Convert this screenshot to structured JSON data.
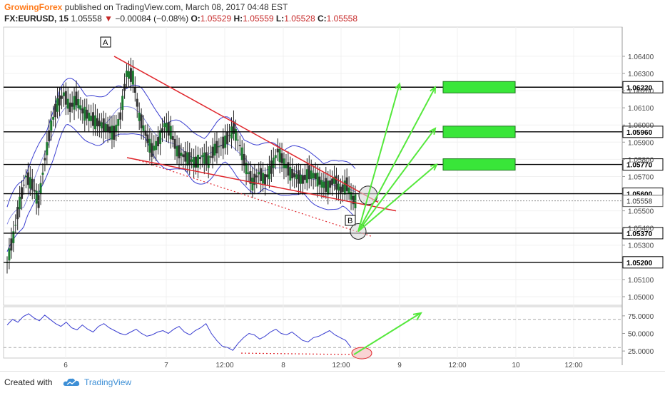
{
  "header": {
    "publisher": "GrowingForex",
    "published_text": "published on TradingView.com, March 08, 2017 04:48 EST",
    "symbol": "FX:EURUSD, 15",
    "last": "1.05558",
    "change_arrow": "▼",
    "change": "−0.00084 (−0.08%)",
    "o_label": "O:",
    "o_value": "1.05529",
    "h_label": "H:",
    "h_value": "1.05559",
    "l_label": "L:",
    "l_value": "1.05528",
    "c_label": "C:",
    "c_value": "1.05558"
  },
  "footer": {
    "created_with": "Created with",
    "brand": "TradingView",
    "logo_icon": "tradingview-cloud-icon"
  },
  "colors": {
    "candle_up": "#1b7a2e",
    "candle_down": "#333333",
    "bollinger": "#3b3fd1",
    "trendline": "#e0262c",
    "target_arrow": "#55e83c",
    "target_box": "#39e639",
    "level_line": "#000000",
    "rsi_line": "#3b3fd1",
    "price_tag_bg": "#222222"
  },
  "chart_data": [
    {
      "type": "candlestick",
      "instrument": "FX:EURUSD",
      "timeframe": "15",
      "x_tick_labels": [
        "6",
        "7",
        "12:00",
        "8",
        "12:00",
        "9",
        "12:00",
        "10",
        "12:00"
      ],
      "y_tick_labels": [
        "1.06400",
        "1.06300",
        "1.06200",
        "1.06100",
        "1.06000",
        "1.05900",
        "1.05800",
        "1.05700",
        "1.05500",
        "1.05400",
        "1.05300",
        "1.05100",
        "1.05000"
      ],
      "ylim": [
        1.0495,
        1.0657
      ],
      "price_close_path": [
        1.052,
        1.0535,
        1.0555,
        1.057,
        1.0565,
        1.0555,
        1.058,
        1.06,
        1.0612,
        1.0618,
        1.061,
        1.0615,
        1.0608,
        1.0605,
        1.0602,
        1.06,
        1.0598,
        1.0595,
        1.0605,
        1.063,
        1.0628,
        1.0605,
        1.0595,
        1.0585,
        1.059,
        1.06,
        1.0596,
        1.0585,
        1.0582,
        1.058,
        1.0578,
        1.0582,
        1.0579,
        1.0586,
        1.0588,
        1.0592,
        1.0598,
        1.0588,
        1.0575,
        1.0566,
        1.0572,
        1.0568,
        1.0575,
        1.0585,
        1.0578,
        1.0572,
        1.057,
        1.0568,
        1.0572,
        1.057,
        1.0566,
        1.0564,
        1.0568,
        1.0562,
        1.0565,
        1.0556
      ],
      "levels": [
        {
          "label": "1.06220",
          "value": 1.0622
        },
        {
          "label": "1.05960",
          "value": 1.0596
        },
        {
          "label": "1.05770",
          "value": 1.0577
        },
        {
          "label": "1.05600",
          "value": 1.056
        },
        {
          "label": "1.05370",
          "value": 1.0537
        },
        {
          "label": "1.05200",
          "value": 1.052
        }
      ],
      "current_price": {
        "label": "1.05558",
        "value": 1.05558
      },
      "annotations": [
        {
          "label": "A"
        },
        {
          "label": "B"
        }
      ],
      "target_boxes": [
        {
          "level": 1.0622
        },
        {
          "level": 1.0596
        },
        {
          "level": 1.0577
        }
      ],
      "grid": true
    },
    {
      "type": "line",
      "indicator": "RSI",
      "y_tick_labels": [
        "75.0000",
        "50.0000",
        "25.0000"
      ],
      "ylim": [
        15,
        88
      ],
      "reference_lines": [
        70,
        30
      ],
      "values": [
        62,
        70,
        66,
        74,
        78,
        72,
        68,
        76,
        70,
        64,
        60,
        66,
        58,
        55,
        62,
        56,
        52,
        60,
        64,
        58,
        54,
        50,
        48,
        52,
        56,
        50,
        46,
        48,
        52,
        54,
        50,
        56,
        60,
        52,
        48,
        54,
        58,
        64,
        50,
        40,
        32,
        30,
        26,
        36,
        44,
        50,
        48,
        42,
        46,
        52,
        56,
        50,
        48,
        52,
        46,
        40,
        38,
        44,
        46,
        50,
        54,
        48,
        44,
        40,
        30
      ]
    }
  ]
}
